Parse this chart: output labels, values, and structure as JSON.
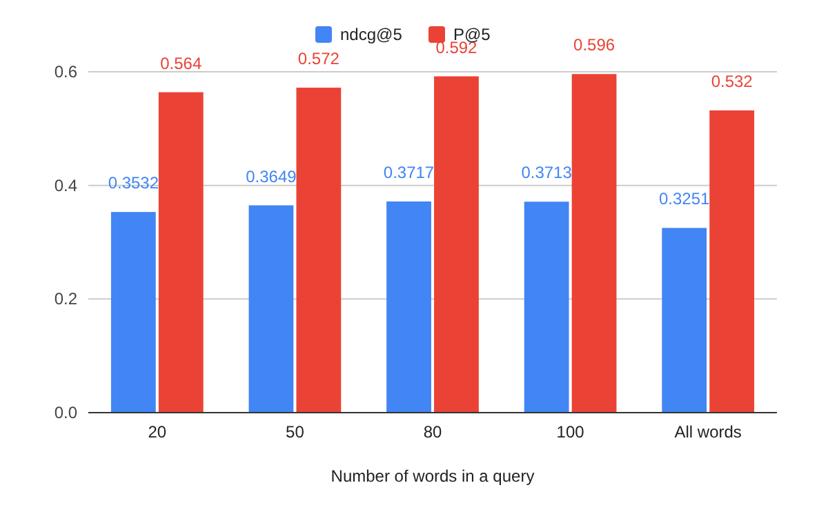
{
  "chart_data": {
    "type": "bar",
    "xlabel": "Number of words in a query",
    "categories": [
      "20",
      "50",
      "80",
      "100",
      "All words"
    ],
    "series": [
      {
        "name": "ndcg@5",
        "color": "#4285f4",
        "values": [
          0.3532,
          0.3649,
          0.3717,
          0.3713,
          0.3251
        ]
      },
      {
        "name": "P@5",
        "color": "#ea4335",
        "values": [
          0.564,
          0.572,
          0.592,
          0.596,
          0.532
        ]
      }
    ],
    "ylim": [
      0,
      0.6
    ],
    "yticks": [
      {
        "value": 0,
        "label": "0.0"
      },
      {
        "value": 0.2,
        "label": "0.2"
      },
      {
        "value": 0.4,
        "label": "0.4"
      },
      {
        "value": 0.6,
        "label": "0.6"
      }
    ],
    "grid": "y",
    "legend": "top",
    "data_labels": true
  }
}
